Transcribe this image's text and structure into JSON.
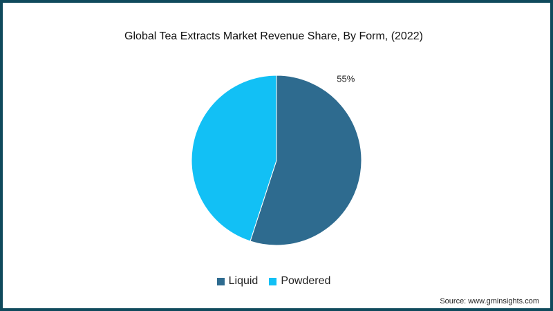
{
  "chart_data": {
    "type": "pie",
    "title": "Global Tea Extracts Market Revenue Share, By Form, (2022)",
    "categories": [
      "Liquid",
      "Powdered"
    ],
    "values": [
      55,
      45
    ],
    "data_labels": [
      "55%",
      ""
    ],
    "colors": [
      "#2e6b8f",
      "#12c0f5"
    ],
    "legend_position": "bottom"
  },
  "legend": {
    "items": [
      {
        "label": "Liquid",
        "color": "#2e6b8f"
      },
      {
        "label": "Powdered",
        "color": "#12c0f5"
      }
    ]
  },
  "source": "Source: www.gminsights.com",
  "frame_color": "#0f4a5c"
}
